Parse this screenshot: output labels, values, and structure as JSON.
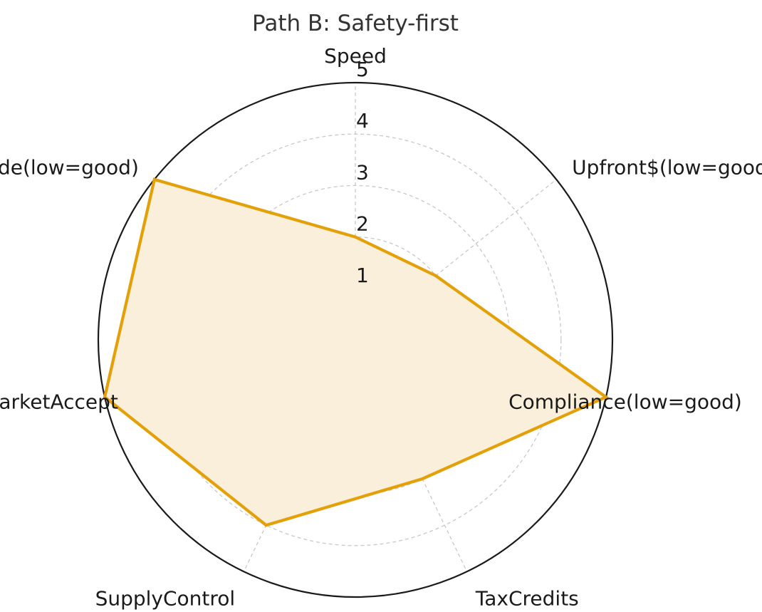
{
  "chart_data": {
    "type": "radar",
    "title": "Path B: Safety-first",
    "axes": [
      "Speed",
      "Upfront$(low=good)",
      "Compliance(low=good)",
      "TaxCredits",
      "SupplyControl",
      "MarketAccept",
      "Geo/Trade(low=good)"
    ],
    "series": [
      {
        "values": [
          2,
          2,
          5,
          3,
          4,
          5,
          5
        ]
      }
    ],
    "rlim": [
      0,
      5
    ],
    "rticks": [
      "1",
      "2",
      "3",
      "4",
      "5"
    ],
    "grid": true,
    "colors": {
      "series_line": "#E3A008",
      "series_fill": "#FAEFDA",
      "grid": "#c8c8c8",
      "outer_ring": "#1a1a1a"
    }
  }
}
